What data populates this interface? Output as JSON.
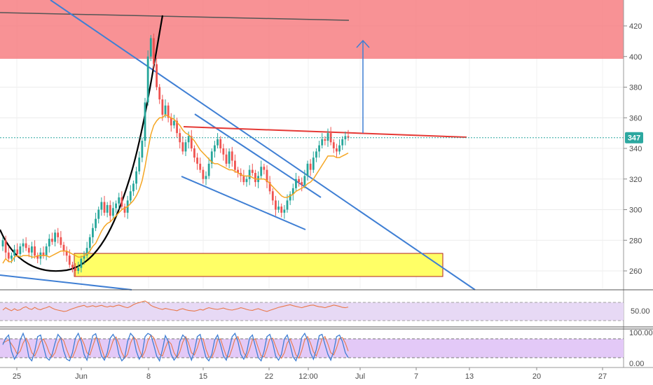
{
  "chart_data": {
    "type": "candlestick",
    "title": "",
    "grid": true,
    "price_axis": {
      "ticks": [
        "260",
        "280",
        "300",
        "320",
        "340",
        "360",
        "380",
        "400",
        "420"
      ],
      "ylim": [
        248,
        432
      ],
      "last_price_label": "347",
      "last_price": 347
    },
    "time_axis": {
      "labels": [
        "25",
        "Jun",
        "8",
        "15",
        "22",
        "12:00",
        "Jul",
        "7",
        "13",
        "20",
        "27"
      ]
    },
    "candles_close": [
      280,
      272,
      268,
      270,
      274,
      271,
      276,
      278,
      275,
      272,
      276,
      270,
      268,
      272,
      270,
      276,
      281,
      279,
      285,
      282,
      277,
      273,
      270,
      264,
      262,
      260,
      262,
      268,
      270,
      275,
      282,
      288,
      294,
      300,
      305,
      298,
      303,
      296,
      301,
      304,
      308,
      302,
      298,
      306,
      312,
      317,
      325,
      334,
      345,
      370,
      400,
      412,
      395,
      380,
      372,
      362,
      368,
      360,
      355,
      358,
      350,
      344,
      338,
      344,
      348,
      340,
      334,
      330,
      326,
      320,
      322,
      330,
      338,
      342,
      346,
      340,
      336,
      330,
      338,
      332,
      326,
      324,
      322,
      318,
      320,
      326,
      324,
      318,
      322,
      328,
      326,
      318,
      312,
      306,
      300,
      302,
      298,
      300,
      306,
      310,
      314,
      320,
      318,
      316,
      322,
      330,
      326,
      334,
      338,
      342,
      346,
      345,
      350,
      344,
      340,
      338,
      342,
      346,
      348,
      347
    ],
    "ema_values": [
      265,
      268,
      266,
      266,
      269,
      270,
      269,
      270,
      270,
      270,
      269,
      269,
      270,
      270,
      270,
      270,
      269,
      270,
      271,
      272,
      273,
      273,
      273,
      272,
      271,
      270,
      269,
      269,
      270,
      271,
      273,
      276,
      278,
      282,
      286,
      289,
      291,
      292,
      294,
      296,
      298,
      300,
      301,
      302,
      304,
      306,
      309,
      313,
      319,
      328,
      339,
      349,
      355,
      358,
      360,
      360,
      362,
      361,
      360,
      359,
      357,
      355,
      352,
      350,
      349,
      347,
      345,
      342,
      339,
      337,
      335,
      333,
      331,
      330,
      330,
      329,
      328,
      327,
      326,
      326,
      325,
      324,
      323,
      322,
      322,
      322,
      321,
      320,
      320,
      320,
      320,
      319,
      317,
      315,
      313,
      311,
      309,
      308,
      308,
      309,
      310,
      312,
      313,
      314,
      315,
      317,
      318,
      320,
      323,
      326,
      329,
      332,
      335,
      335,
      335,
      334,
      334,
      335,
      336,
      337
    ],
    "rsi_values": [
      48,
      55,
      50,
      46,
      52,
      47,
      49,
      55,
      58,
      52,
      50,
      56,
      51,
      49,
      53,
      55,
      59,
      54,
      50,
      48,
      46,
      44,
      45,
      49,
      52,
      55,
      58,
      60,
      62,
      57,
      59,
      61,
      58,
      60,
      62,
      59,
      57,
      60,
      58,
      61,
      63,
      60,
      57,
      55,
      59,
      64,
      68,
      70,
      73,
      75,
      70,
      62,
      58,
      55,
      52,
      50,
      53,
      51,
      49,
      48,
      46,
      50,
      52,
      49,
      47,
      46,
      45,
      47,
      50,
      48,
      52,
      55,
      53,
      51,
      50,
      52,
      54,
      51,
      49,
      48,
      50,
      52,
      55,
      53,
      50,
      48,
      47,
      50,
      52,
      49,
      46,
      44,
      47,
      50,
      53,
      56,
      58,
      60,
      62,
      64,
      61,
      59,
      57,
      55,
      58,
      60,
      62,
      63,
      60,
      58,
      57,
      55,
      58,
      60,
      63,
      61,
      59,
      56,
      55,
      57
    ],
    "stoch_k": [
      60,
      80,
      90,
      40,
      15,
      30,
      75,
      95,
      70,
      20,
      10,
      40,
      85,
      90,
      55,
      20,
      12,
      30,
      65,
      92,
      80,
      40,
      15,
      10,
      35,
      80,
      95,
      70,
      30,
      12,
      50,
      88,
      94,
      60,
      25,
      12,
      35,
      80,
      92,
      75,
      30,
      10,
      20,
      70,
      95,
      85,
      40,
      15,
      30,
      85,
      95,
      90,
      60,
      25,
      10,
      45,
      88,
      70,
      30,
      12,
      25,
      70,
      90,
      80,
      35,
      12,
      40,
      85,
      92,
      55,
      20,
      10,
      30,
      75,
      90,
      60,
      25,
      12,
      45,
      85,
      95,
      70,
      30,
      15,
      35,
      80,
      90,
      55,
      20,
      10,
      40,
      85,
      92,
      65,
      25,
      12,
      30,
      78,
      90,
      60,
      22,
      10,
      35,
      82,
      95,
      75,
      35,
      15,
      45,
      88,
      92,
      60,
      30,
      12,
      40,
      85,
      90,
      70,
      35,
      20
    ],
    "stoch_d": [
      65,
      70,
      75,
      62,
      48,
      30,
      40,
      65,
      80,
      62,
      35,
      25,
      45,
      70,
      78,
      60,
      35,
      22,
      35,
      65,
      82,
      72,
      45,
      22,
      20,
      42,
      70,
      82,
      62,
      35,
      28,
      55,
      82,
      78,
      48,
      22,
      22,
      45,
      72,
      84,
      62,
      35,
      18,
      30,
      65,
      85,
      75,
      45,
      22,
      40,
      72,
      90,
      82,
      55,
      30,
      25,
      50,
      72,
      62,
      35,
      20,
      38,
      68,
      85,
      65,
      35,
      28,
      50,
      80,
      78,
      45,
      22,
      20,
      42,
      75,
      78,
      50,
      25,
      22,
      48,
      78,
      85,
      62,
      35,
      22,
      45,
      75,
      78,
      50,
      25,
      22,
      48,
      78,
      80,
      55,
      30,
      18,
      35,
      65,
      78,
      55,
      28,
      18,
      42,
      75,
      85,
      65,
      38,
      25,
      50,
      78,
      85,
      62,
      35,
      28,
      50,
      80,
      82,
      65,
      40
    ]
  },
  "ui": {
    "rsi_axis_label": "50.00",
    "stoch_axis_top_label": "100.00",
    "stoch_axis_bottom_label": "0.00",
    "colors": {
      "up": "#26a69a",
      "down": "#ef5350",
      "ema": "#f5a623",
      "trend": "#3f7fd4",
      "resistance": "#e53935",
      "supply_zone": "#f77f83",
      "demand_zone": "#ffff66",
      "rsi": "#e8784a",
      "stoch_k": "#3f7fd4",
      "stoch_d": "#e8784a",
      "price_label_bg": "#2ca8a0"
    }
  }
}
